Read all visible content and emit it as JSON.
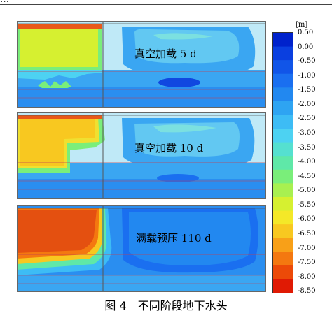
{
  "header": {
    "text": "…"
  },
  "colorbar": {
    "unit": "[m]",
    "ticks": [
      "0.50",
      "0.00",
      "-0.50",
      "-1.00",
      "-1.50",
      "-2.00",
      "-2.50",
      "-3.00",
      "-3.50",
      "-4.00",
      "-4.50",
      "-5.00",
      "-5.50",
      "-6.00",
      "-6.50",
      "-7.00",
      "-7.50",
      "-8.00",
      "-8.50"
    ],
    "colors": [
      "#0022cc",
      "#0a3fe0",
      "#1155e8",
      "#1a6ff0",
      "#2288f0",
      "#2ea4f2",
      "#3dbcf5",
      "#4dd2f2",
      "#55e0d0",
      "#5fe8a8",
      "#7aee7a",
      "#a8f050",
      "#d6f030",
      "#f4e828",
      "#f8c820",
      "#f8a018",
      "#f47810",
      "#ec4a08",
      "#e01a04"
    ]
  },
  "panels": [
    {
      "label": "真空加载 5 d"
    },
    {
      "label": "真空加载 10 d"
    },
    {
      "label": "满载预压 110 d"
    }
  ],
  "caption": "图 4　不同阶段地下水头"
}
